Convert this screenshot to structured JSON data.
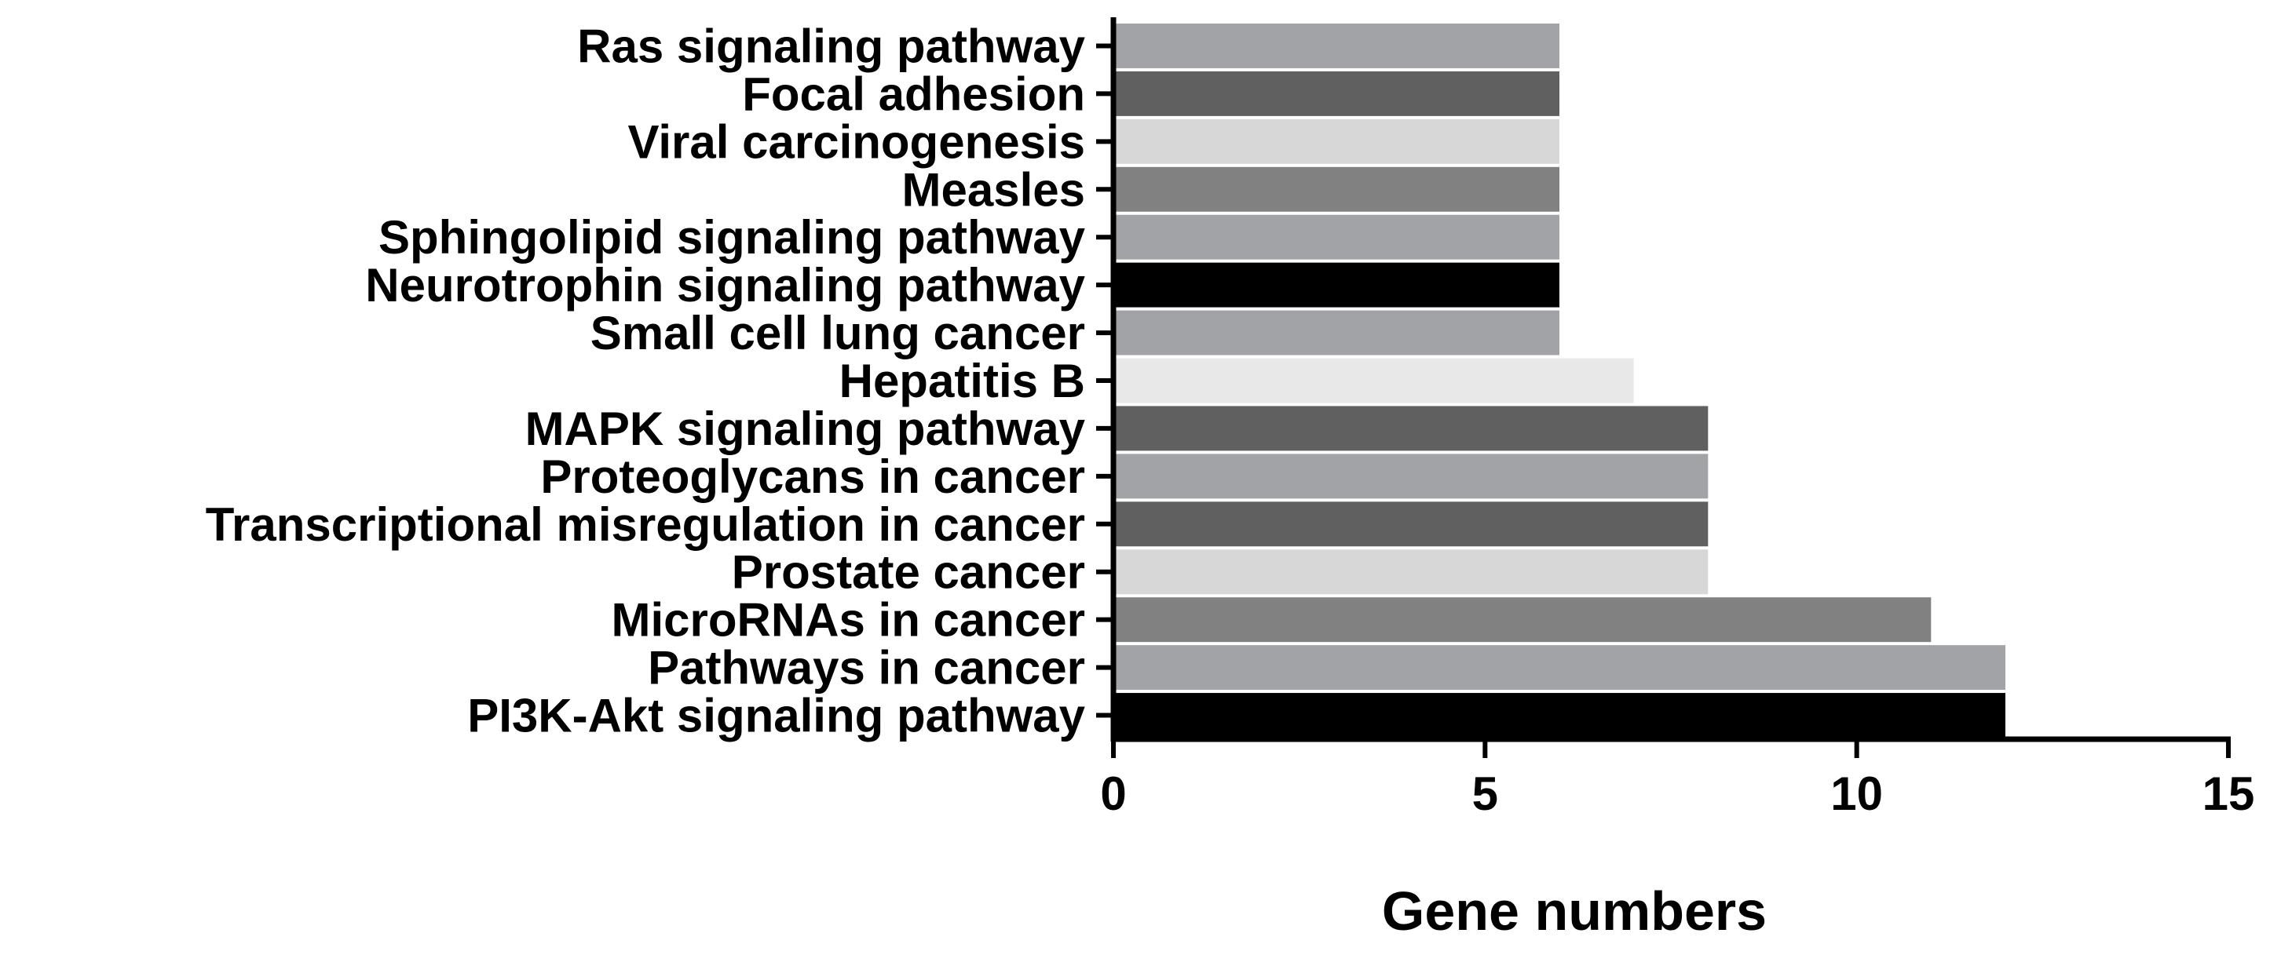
{
  "chart_data": {
    "type": "bar",
    "orientation": "horizontal",
    "title": "",
    "xlabel": "Gene numbers",
    "ylabel": "",
    "xlim": [
      0,
      15
    ],
    "xticks": [
      0,
      5,
      10,
      15
    ],
    "grid": false,
    "categories": [
      "Ras signaling pathway",
      "Focal adhesion",
      "Viral carcinogenesis",
      "Measles",
      "Sphingolipid signaling pathway",
      "Neurotrophin signaling pathway",
      "Small cell lung cancer",
      "Hepatitis B",
      "MAPK signaling pathway",
      "Proteoglycans in cancer",
      "Transcriptional misregulation in cancer",
      "Prostate cancer",
      "MicroRNAs in cancer",
      "Pathways in cancer",
      "PI3K-Akt signaling pathway"
    ],
    "values": [
      6,
      6,
      6,
      6,
      6,
      6,
      6,
      7,
      8,
      8,
      8,
      8,
      11,
      12,
      12
    ],
    "colors": [
      "#a2a3a7",
      "#606060",
      "#d7d7d7",
      "#818181",
      "#a2a3a7",
      "#000000",
      "#a2a3a7",
      "#e8e8e8",
      "#606060",
      "#a2a3a7",
      "#606060",
      "#d7d7d7",
      "#818181",
      "#a2a3a7",
      "#000000"
    ]
  }
}
